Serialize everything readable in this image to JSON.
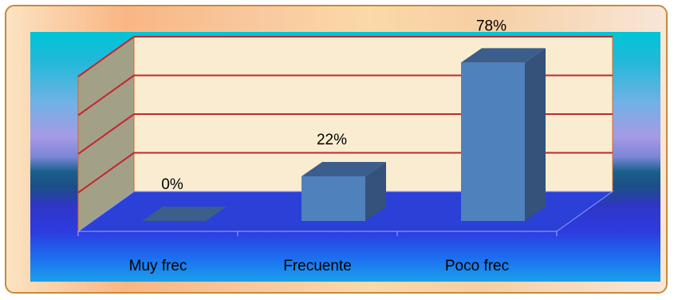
{
  "chart_data": {
    "type": "bar",
    "categories": [
      "Muy frec",
      "Frecuente",
      "Poco frec"
    ],
    "values": [
      0,
      22,
      78
    ],
    "data_labels": [
      "0%",
      "22%",
      "78%"
    ],
    "ylim": [
      0,
      80
    ],
    "grid": true,
    "bar_color": "#4f81bd",
    "bar_top_color": "#3b5e8c",
    "bar_side_color": "#34527a",
    "gridline_color": "#c0282d",
    "wall_color": "#f9ecd0",
    "side_wall_color": "#a3a088"
  }
}
